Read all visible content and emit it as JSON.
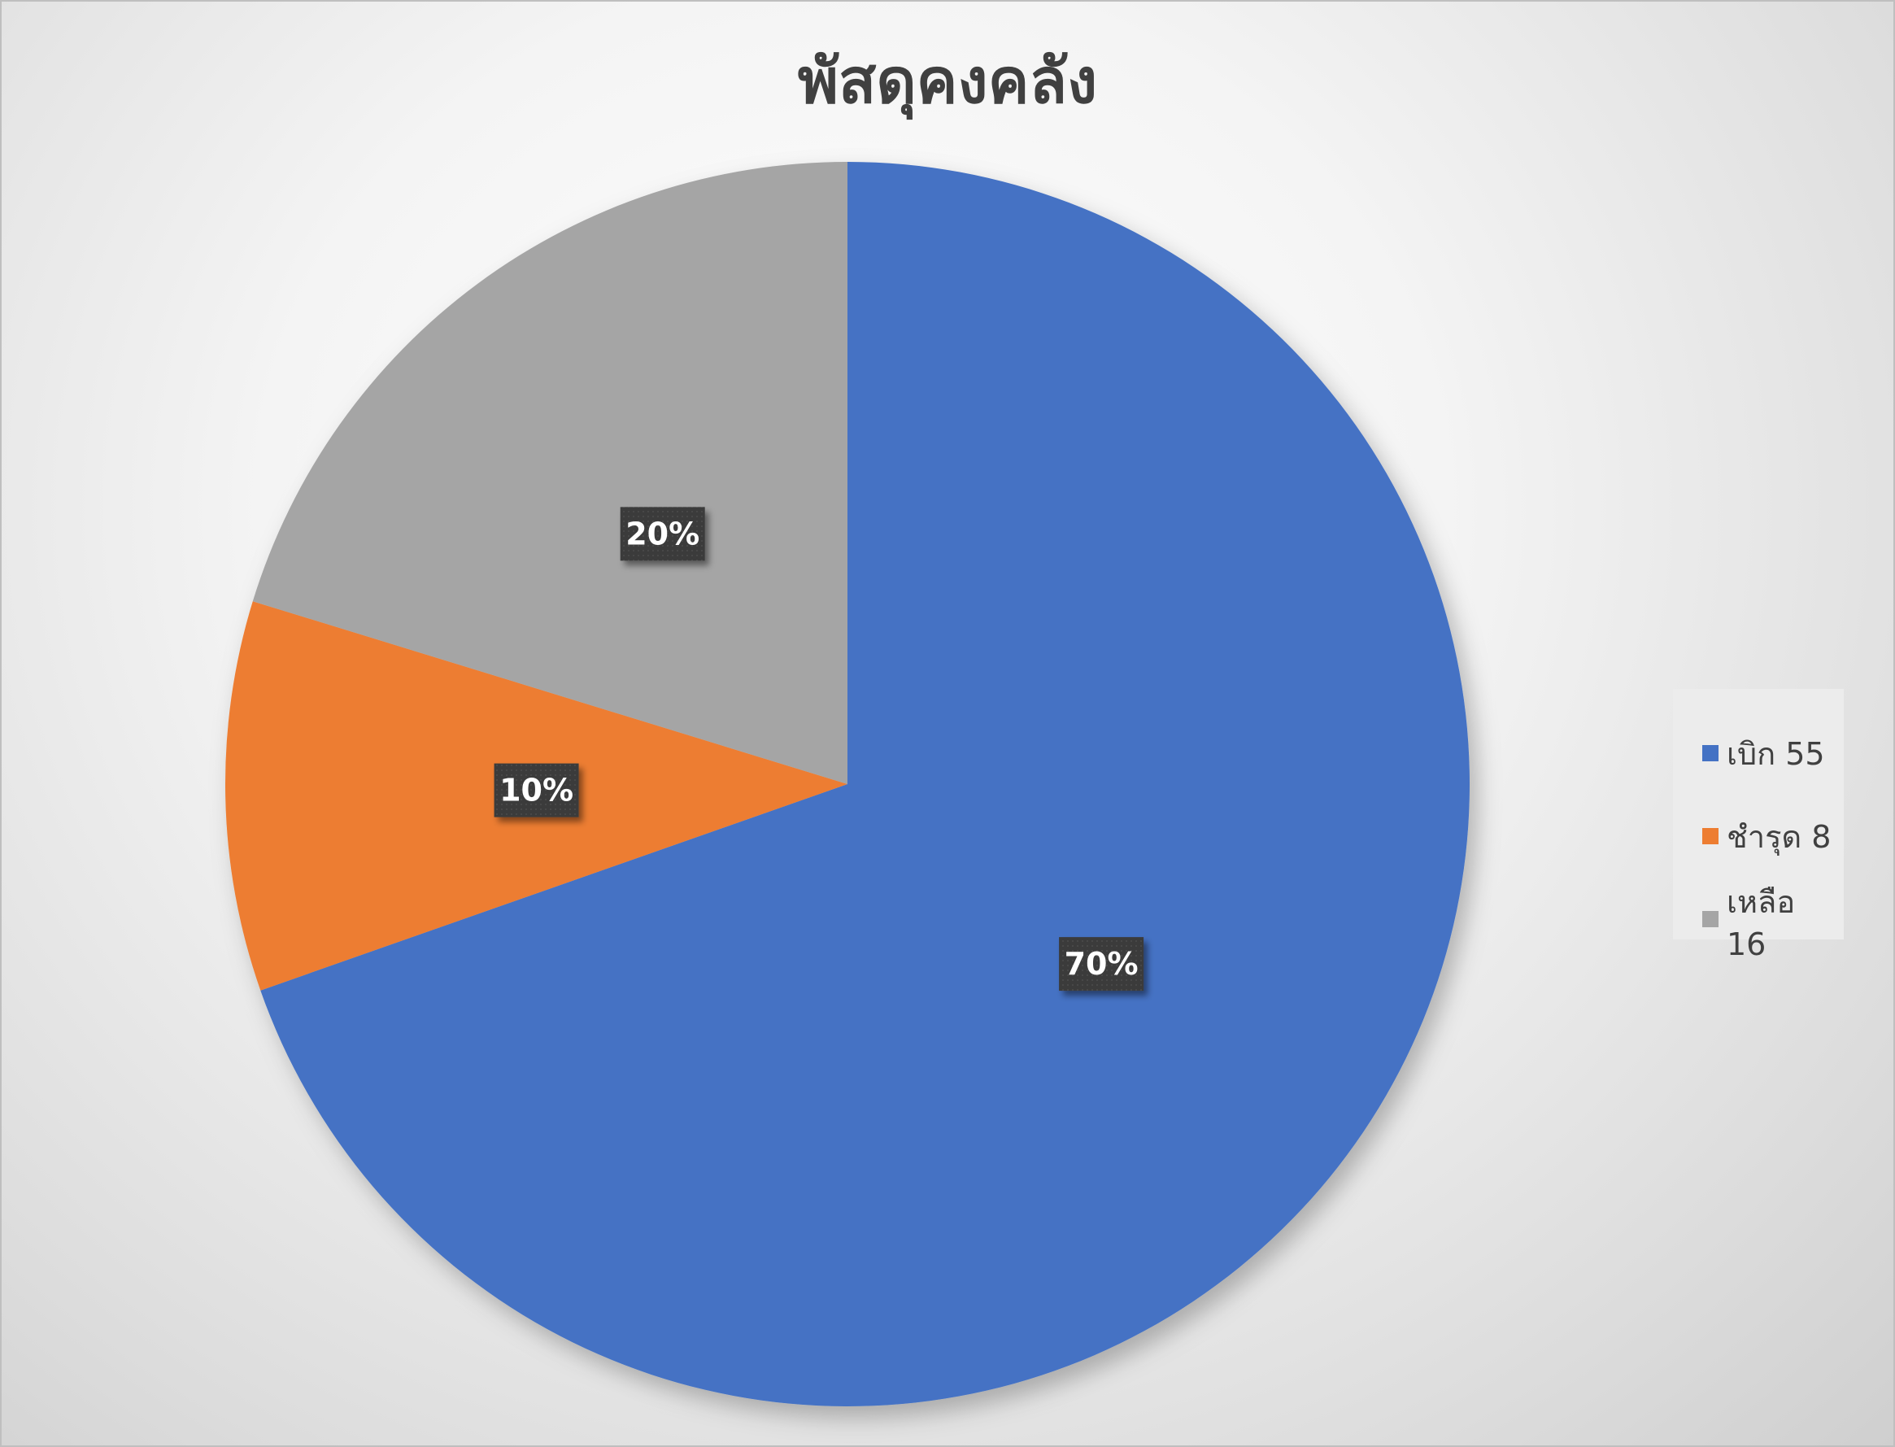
{
  "chart_data": {
    "type": "pie",
    "title": "พัสดุคงคลัง",
    "categories": [
      "เบิก 55",
      "ชำรุด 8",
      "เหลือ 16"
    ],
    "values": [
      55,
      8,
      16
    ],
    "labels": [
      "70%",
      "10%",
      "20%"
    ],
    "colors": [
      "#4472C4",
      "#ED7D31",
      "#A5A5A5"
    ],
    "legend_position": "right",
    "start_angle_deg": 0,
    "direction": "clockwise"
  }
}
